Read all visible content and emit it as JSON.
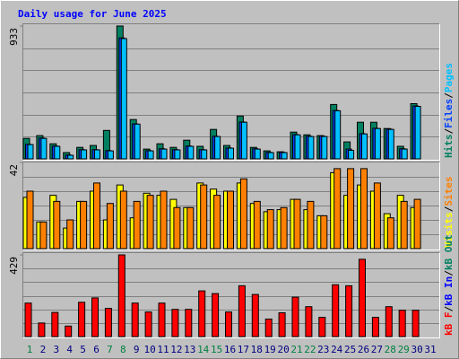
{
  "chart_data": {
    "type": "bar",
    "title": "Daily usage for June 2025",
    "categories": [
      "1",
      "2",
      "3",
      "4",
      "5",
      "6",
      "7",
      "8",
      "9",
      "10",
      "11",
      "12",
      "13",
      "14",
      "15",
      "16",
      "17",
      "18",
      "19",
      "20",
      "21",
      "22",
      "23",
      "24",
      "25",
      "26",
      "27",
      "28",
      "29",
      "30",
      "31"
    ],
    "category_colors": [
      "#008040",
      "#000080",
      "#000080",
      "#000080",
      "#000080",
      "#000080",
      "#008040",
      "#008040",
      "#000080",
      "#000080",
      "#000080",
      "#000080",
      "#000080",
      "#008040",
      "#008040",
      "#000080",
      "#000080",
      "#000080",
      "#000080",
      "#000080",
      "#008040",
      "#008040",
      "#000080",
      "#000080",
      "#000080",
      "#000080",
      "#000080",
      "#008040",
      "#008040",
      "#000080",
      "#000080"
    ],
    "grid": true,
    "panels": [
      {
        "ylim": [
          0,
          933
        ],
        "yticks": [
          933
        ],
        "series": [
          {
            "name": "Hits",
            "color": "#008060",
            "values": [
              144,
              163,
              106,
              44,
              81,
              94,
              200,
              933,
              276,
              69,
              106,
              81,
              131,
              88,
              207,
              94,
              301,
              81,
              56,
              50,
              188,
              169,
              163,
              382,
              119,
              257,
              257,
              213,
              88,
              388,
              0
            ]
          },
          {
            "name": "Files",
            "color": "#0040ff",
            "values": [
              102,
              146,
              90,
              27,
              65,
              65,
              58,
              850,
              246,
              58,
              71,
              65,
              90,
              65,
              159,
              77,
              259,
              71,
              46,
              46,
              171,
              159,
              159,
              340,
              69,
              177,
              215,
              209,
              71,
              371,
              0
            ]
          },
          {
            "name": "Pages",
            "color": "#00c0ff",
            "values": [
              100,
              144,
              88,
              25,
              63,
              63,
              56,
              845,
              244,
              56,
              69,
              63,
              88,
              63,
              157,
              75,
              257,
              69,
              44,
              44,
              169,
              157,
              157,
              338,
              60,
              175,
              213,
              207,
              69,
              369,
              0
            ]
          }
        ]
      },
      {
        "ylim": [
          0,
          42
        ],
        "yticks": [
          42
        ],
        "series": [
          {
            "name": "Visits",
            "color": "#ffff00",
            "values": [
              25,
              13,
              26,
              10,
              23,
              28,
              14,
              31,
              15,
              27,
              26,
              24,
              20,
              32,
              29,
              28,
              32,
              22,
              18,
              19,
              24,
              19,
              16,
              37,
              26,
              31,
              28,
              17,
              26,
              20,
              0
            ]
          },
          {
            "name": "Sites",
            "color": "#ff8000",
            "values": [
              28,
              13,
              23,
              14,
              23,
              32,
              22,
              28,
              23,
              26,
              28,
              20,
              20,
              31,
              26,
              28,
              34,
              23,
              19,
              20,
              24,
              23,
              16,
              39,
              39,
              39,
              32,
              15,
              23,
              24,
              0
            ]
          }
        ]
      },
      {
        "ylim": [
          0,
          429
        ],
        "yticks": [
          429
        ],
        "series": [
          {
            "name": "kB F",
            "color": "#ff0000",
            "values": [
              176,
              71,
              127,
              55,
              180,
              203,
              148,
              429,
              176,
              129,
              176,
              143,
              143,
              240,
              226,
              129,
              267,
              221,
              92,
              125,
              207,
              157,
              101,
              272,
              267,
              406,
              101,
              157,
              138,
              138,
              0
            ]
          },
          {
            "name": "kB In",
            "color": "#0000ff"
          },
          {
            "name": "kB Out",
            "color": "#008060"
          }
        ]
      }
    ]
  }
}
